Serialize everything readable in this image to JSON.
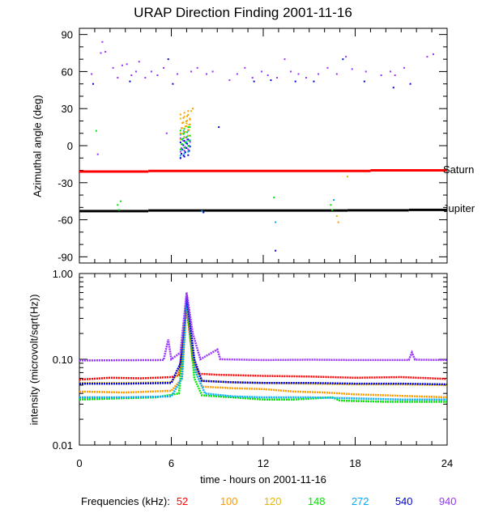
{
  "title": "URAP Direction Finding  2001-11-16",
  "xlabel": "time - hours on 2001-11-16",
  "frequency_legend_label": "Frequencies (kHz):",
  "chart_data": [
    {
      "type": "scatter",
      "ylabel": "Azimuthal angle (deg)",
      "xlim": [
        0,
        24
      ],
      "ylim": [
        -95,
        95
      ],
      "x_ticks": [
        "0",
        "6",
        "12",
        "18",
        "24"
      ],
      "y_ticks": [
        "90",
        "60",
        "30",
        "0",
        "-30",
        "-60",
        "-90"
      ],
      "reference_lines": [
        {
          "name": "Saturn",
          "color": "#ff0000",
          "segments": [
            [
              0,
              4.5,
              -21
            ],
            [
              4.5,
              19,
              -20.5
            ],
            [
              19,
              24,
              -20
            ]
          ]
        },
        {
          "name": "Jupiter",
          "color": "#000000",
          "segments": [
            [
              0,
              4.5,
              -53
            ],
            [
              4.5,
              17.5,
              -52.5
            ],
            [
              17.5,
              21.5,
              -52.3
            ],
            [
              21.5,
              24,
              -52
            ]
          ]
        }
      ],
      "scatter_groups": [
        {
          "freq": "940",
          "points": [
            [
              0.8,
              58
            ],
            [
              1.4,
              75
            ],
            [
              1.5,
              84
            ],
            [
              1.7,
              76
            ],
            [
              2.2,
              63
            ],
            [
              2.5,
              55
            ],
            [
              2.8,
              65
            ],
            [
              3.1,
              66
            ],
            [
              3.4,
              57
            ],
            [
              3.7,
              60
            ],
            [
              3.9,
              68
            ],
            [
              4.3,
              55
            ],
            [
              4.7,
              60
            ],
            [
              5.1,
              57
            ],
            [
              5.5,
              63
            ],
            [
              5.7,
              10
            ],
            [
              6.4,
              58
            ],
            [
              7.3,
              60
            ],
            [
              7.7,
              63
            ],
            [
              8.3,
              58
            ],
            [
              8.7,
              60
            ],
            [
              9.8,
              53
            ],
            [
              10.3,
              58
            ],
            [
              10.8,
              63
            ],
            [
              11.3,
              55
            ],
            [
              11.9,
              60
            ],
            [
              12.3,
              57
            ],
            [
              12.9,
              55
            ],
            [
              13.4,
              70
            ],
            [
              13.8,
              60
            ],
            [
              14.3,
              58
            ],
            [
              14.8,
              55
            ],
            [
              15.6,
              58
            ],
            [
              16.2,
              63
            ],
            [
              16.8,
              58
            ],
            [
              17.4,
              72
            ],
            [
              17.8,
              62
            ],
            [
              18.7,
              60
            ],
            [
              19.7,
              57
            ],
            [
              20.3,
              60
            ],
            [
              20.6,
              57
            ],
            [
              21.2,
              63
            ],
            [
              22.7,
              72
            ],
            [
              23.1,
              74
            ],
            [
              1.2,
              -7
            ]
          ]
        },
        {
          "freq": "540",
          "points": [
            [
              0.9,
              50
            ],
            [
              3.3,
              52
            ],
            [
              5.8,
              70
            ],
            [
              6.1,
              50
            ],
            [
              9.1,
              15
            ],
            [
              11.4,
              52
            ],
            [
              12.5,
              53
            ],
            [
              14.1,
              52
            ],
            [
              15.3,
              52
            ],
            [
              17.2,
              70
            ],
            [
              18.6,
              52
            ],
            [
              20.5,
              47
            ],
            [
              21.6,
              50
            ],
            [
              12.8,
              -85
            ],
            [
              8.1,
              -54
            ],
            [
              6.6,
              -10
            ],
            [
              6.8,
              -8
            ]
          ]
        },
        {
          "freq": "272",
          "points": [
            [
              8.0,
              -53
            ],
            [
              12.8,
              -62
            ],
            [
              16.6,
              -44
            ],
            [
              6.7,
              5
            ],
            [
              6.9,
              -5
            ],
            [
              7.1,
              8
            ],
            [
              6.8,
              12
            ]
          ]
        },
        {
          "freq": "148",
          "points": [
            [
              2.5,
              -48
            ],
            [
              2.6,
              -52
            ],
            [
              2.7,
              -45
            ],
            [
              16.4,
              -48
            ],
            [
              16.5,
              -52
            ],
            [
              1.1,
              12
            ],
            [
              6.8,
              10
            ],
            [
              7.0,
              3
            ],
            [
              7.2,
              15
            ],
            [
              12.7,
              -42
            ]
          ]
        },
        {
          "freq": "120",
          "points": [
            [
              7.0,
              18
            ],
            [
              7.2,
              22
            ],
            [
              7.3,
              28
            ],
            [
              16.8,
              -57
            ],
            [
              17.5,
              -25
            ]
          ]
        },
        {
          "freq": "100",
          "points": [
            [
              7.1,
              25
            ],
            [
              7.4,
              30
            ],
            [
              16.9,
              -62
            ]
          ]
        },
        {
          "freq": "52",
          "points": [
            [
              7.0,
              -2
            ]
          ]
        }
      ]
    },
    {
      "type": "line",
      "ylabel": "intensity (microvolt/sqrt(Hz))",
      "yscale": "log",
      "xlim": [
        0,
        24
      ],
      "ylim": [
        0.01,
        1.0
      ],
      "x_ticks": [
        "0",
        "6",
        "12",
        "18",
        "24"
      ],
      "y_ticks": [
        "1.00",
        "0.10",
        "0.01"
      ],
      "series": [
        {
          "name": "52",
          "points": [
            [
              0,
              0.058
            ],
            [
              2,
              0.061
            ],
            [
              4,
              0.06
            ],
            [
              6,
              0.062
            ],
            [
              6.5,
              0.065
            ],
            [
              7.0,
              0.4
            ],
            [
              7.4,
              0.1
            ],
            [
              7.8,
              0.068
            ],
            [
              9,
              0.066
            ],
            [
              12,
              0.064
            ],
            [
              15,
              0.063
            ],
            [
              18,
              0.061
            ],
            [
              21,
              0.062
            ],
            [
              24,
              0.059
            ]
          ]
        },
        {
          "name": "100",
          "points": [
            [
              0,
              0.042
            ],
            [
              3,
              0.041
            ],
            [
              6,
              0.043
            ],
            [
              6.7,
              0.06
            ],
            [
              7.0,
              0.45
            ],
            [
              7.5,
              0.08
            ],
            [
              8,
              0.048
            ],
            [
              10,
              0.046
            ],
            [
              12,
              0.045
            ],
            [
              14,
              0.042
            ],
            [
              16,
              0.041
            ],
            [
              18,
              0.039
            ],
            [
              20,
              0.038
            ],
            [
              22,
              0.037
            ],
            [
              24,
              0.036
            ]
          ]
        },
        {
          "name": "120",
          "points": [
            [
              0,
              0.053
            ],
            [
              3,
              0.053
            ],
            [
              6,
              0.054
            ],
            [
              6.7,
              0.08
            ],
            [
              7.0,
              0.48
            ],
            [
              7.5,
              0.09
            ],
            [
              8,
              0.056
            ],
            [
              10,
              0.054
            ],
            [
              12,
              0.053
            ],
            [
              15,
              0.052
            ],
            [
              18,
              0.051
            ],
            [
              21,
              0.051
            ],
            [
              24,
              0.05
            ]
          ]
        },
        {
          "name": "148",
          "points": [
            [
              0,
              0.034
            ],
            [
              2.5,
              0.035
            ],
            [
              5,
              0.036
            ],
            [
              6.5,
              0.04
            ],
            [
              7.0,
              0.5
            ],
            [
              7.5,
              0.06
            ],
            [
              8,
              0.038
            ],
            [
              10,
              0.036
            ],
            [
              12,
              0.034
            ],
            [
              14,
              0.034
            ],
            [
              16.5,
              0.036
            ],
            [
              17,
              0.033
            ],
            [
              20,
              0.032
            ],
            [
              24,
              0.032
            ]
          ]
        },
        {
          "name": "272",
          "points": [
            [
              0,
              0.036
            ],
            [
              3,
              0.036
            ],
            [
              6,
              0.037
            ],
            [
              6.7,
              0.06
            ],
            [
              7.0,
              0.5
            ],
            [
              7.6,
              0.07
            ],
            [
              8.2,
              0.04
            ],
            [
              10,
              0.037
            ],
            [
              12,
              0.036
            ],
            [
              15,
              0.036
            ],
            [
              18,
              0.035
            ],
            [
              21,
              0.034
            ],
            [
              24,
              0.034
            ]
          ]
        },
        {
          "name": "540",
          "points": [
            [
              0,
              0.052
            ],
            [
              3,
              0.052
            ],
            [
              6,
              0.053
            ],
            [
              6.6,
              0.09
            ],
            [
              7.0,
              0.55
            ],
            [
              7.5,
              0.1
            ],
            [
              8,
              0.056
            ],
            [
              10,
              0.054
            ],
            [
              12,
              0.053
            ],
            [
              15,
              0.053
            ],
            [
              18,
              0.052
            ],
            [
              21,
              0.052
            ],
            [
              24,
              0.051
            ]
          ]
        },
        {
          "name": "940",
          "points": [
            [
              0,
              0.097
            ],
            [
              5.5,
              0.098
            ],
            [
              5.8,
              0.17
            ],
            [
              6.0,
              0.1
            ],
            [
              6.6,
              0.12
            ],
            [
              7.0,
              0.6
            ],
            [
              7.4,
              0.2
            ],
            [
              7.9,
              0.1
            ],
            [
              9.0,
              0.13
            ],
            [
              9.2,
              0.1
            ],
            [
              12,
              0.098
            ],
            [
              15,
              0.099
            ],
            [
              18,
              0.098
            ],
            [
              21.5,
              0.098
            ],
            [
              21.7,
              0.12
            ],
            [
              21.9,
              0.099
            ],
            [
              24,
              0.098
            ]
          ]
        }
      ]
    }
  ],
  "frequencies": [
    {
      "label": "52",
      "color": "#ff0000"
    },
    {
      "label": "100",
      "color": "#ff9900"
    },
    {
      "label": "120",
      "color": "#e6b800"
    },
    {
      "label": "148",
      "color": "#00e600"
    },
    {
      "label": "272",
      "color": "#00aaff"
    },
    {
      "label": "540",
      "color": "#0000dd"
    },
    {
      "label": "940",
      "color": "#9933ff"
    }
  ]
}
